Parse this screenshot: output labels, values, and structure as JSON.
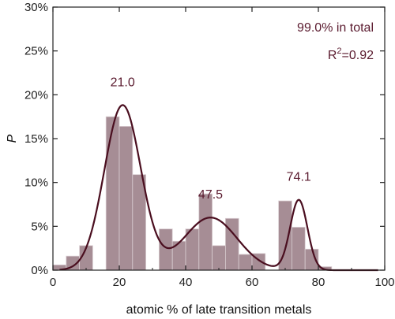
{
  "colors": {
    "bar_fill": "#a68d95",
    "bar_stroke": "#d9cdd1",
    "curve": "#4a0e1f",
    "annotation": "#5a1a2e",
    "axis": "#222222"
  },
  "chart_data": {
    "type": "bar",
    "xlabel": "atomic % of late transition metals",
    "ylabel": "P",
    "xlim": [
      0,
      100
    ],
    "ylim": [
      0,
      30
    ],
    "x_ticks": [
      0,
      20,
      40,
      60,
      80,
      100
    ],
    "x_tick_labels": [
      "0",
      "20",
      "40",
      "60",
      "80",
      "100"
    ],
    "y_ticks": [
      0,
      5,
      10,
      15,
      20,
      25,
      30
    ],
    "y_tick_labels": [
      "0%",
      "5%",
      "10%",
      "15%",
      "20%",
      "25%",
      "30%"
    ],
    "bar_width": 4,
    "bins": [
      {
        "x": 2,
        "value": 0.6
      },
      {
        "x": 6,
        "value": 1.6
      },
      {
        "x": 10,
        "value": 2.8
      },
      {
        "x": 14,
        "value": 0.0
      },
      {
        "x": 18,
        "value": 17.5
      },
      {
        "x": 22,
        "value": 16.4
      },
      {
        "x": 26,
        "value": 10.9
      },
      {
        "x": 30,
        "value": 0.0
      },
      {
        "x": 34,
        "value": 4.7
      },
      {
        "x": 38,
        "value": 3.3
      },
      {
        "x": 42,
        "value": 4.7
      },
      {
        "x": 46,
        "value": 8.7
      },
      {
        "x": 50,
        "value": 2.8
      },
      {
        "x": 54,
        "value": 5.9
      },
      {
        "x": 58,
        "value": 1.8
      },
      {
        "x": 62,
        "value": 1.9
      },
      {
        "x": 66,
        "value": 0.0
      },
      {
        "x": 70,
        "value": 7.9
      },
      {
        "x": 74,
        "value": 4.9
      },
      {
        "x": 78,
        "value": 2.4
      },
      {
        "x": 82,
        "value": 0.4
      }
    ],
    "fit_curve": {
      "components": [
        {
          "center": 21.0,
          "amplitude": 18.8,
          "sigma": 5.5
        },
        {
          "center": 47.5,
          "amplitude": 6.0,
          "sigma": 8.0
        },
        {
          "center": 74.1,
          "amplitude": 8.0,
          "sigma": 2.6
        }
      ],
      "x_range": [
        2,
        98
      ]
    },
    "peak_labels": [
      {
        "x": 21.0,
        "text": "21.0"
      },
      {
        "x": 47.5,
        "text": "47.5"
      },
      {
        "x": 74.1,
        "text": "74.1"
      }
    ],
    "annotations": {
      "total": "99.0% in total",
      "r2_prefix": "R",
      "r2_sup": "2",
      "r2_value": "=0.92"
    }
  }
}
